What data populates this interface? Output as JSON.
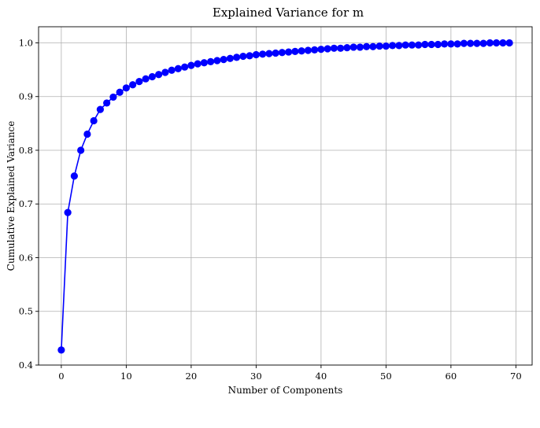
{
  "chart_data": {
    "type": "line",
    "title": "Explained Variance for m",
    "xlabel": "Number of Components",
    "ylabel": "Cumulative Explained Variance",
    "xlim": [
      -3.5,
      72.5
    ],
    "ylim": [
      0.4,
      1.03
    ],
    "xticks": [
      0,
      10,
      20,
      30,
      40,
      50,
      60,
      70
    ],
    "yticks": [
      0.4,
      0.5,
      0.6,
      0.7,
      0.8,
      0.9,
      1.0
    ],
    "xtick_labels": [
      "0",
      "10",
      "20",
      "30",
      "40",
      "50",
      "60",
      "70"
    ],
    "ytick_labels": [
      "0.4",
      "0.5",
      "0.6",
      "0.7",
      "0.8",
      "0.9",
      "1.0"
    ],
    "grid": true,
    "color": "#0000ff",
    "marker": "circle",
    "series": [
      {
        "x": [
          0,
          1,
          2,
          3,
          4,
          5,
          6,
          7,
          8,
          9,
          10,
          11,
          12,
          13,
          14,
          15,
          16,
          17,
          18,
          19,
          20,
          21,
          22,
          23,
          24,
          25,
          26,
          27,
          28,
          29,
          30,
          31,
          32,
          33,
          34,
          35,
          36,
          37,
          38,
          39,
          40,
          41,
          42,
          43,
          44,
          45,
          46,
          47,
          48,
          49,
          50,
          51,
          52,
          53,
          54,
          55,
          56,
          57,
          58,
          59,
          60,
          61,
          62,
          63,
          64,
          65,
          66,
          67,
          68,
          69
        ],
        "values": [
          0.428,
          0.684,
          0.752,
          0.8,
          0.83,
          0.855,
          0.876,
          0.888,
          0.899,
          0.908,
          0.916,
          0.922,
          0.928,
          0.933,
          0.937,
          0.941,
          0.945,
          0.949,
          0.952,
          0.955,
          0.958,
          0.961,
          0.963,
          0.965,
          0.967,
          0.969,
          0.971,
          0.973,
          0.975,
          0.976,
          0.978,
          0.979,
          0.98,
          0.981,
          0.982,
          0.983,
          0.984,
          0.985,
          0.986,
          0.987,
          0.988,
          0.989,
          0.99,
          0.99,
          0.991,
          0.992,
          0.992,
          0.993,
          0.993,
          0.994,
          0.994,
          0.995,
          0.995,
          0.996,
          0.996,
          0.996,
          0.997,
          0.997,
          0.997,
          0.998,
          0.998,
          0.998,
          0.999,
          0.999,
          0.999,
          0.999,
          1.0,
          1.0,
          1.0,
          1.0
        ]
      }
    ]
  }
}
